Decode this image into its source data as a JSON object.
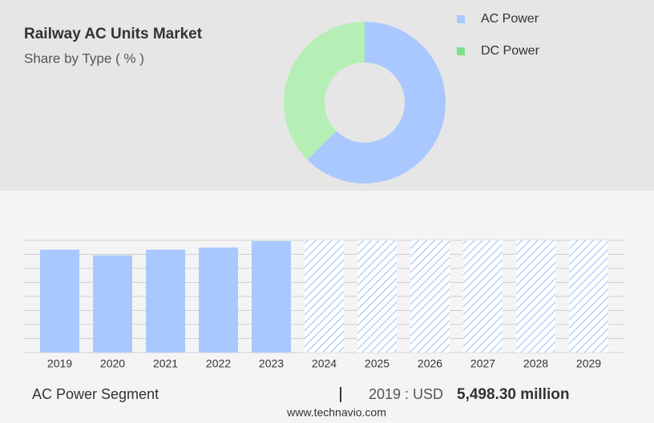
{
  "chart_data": [
    {
      "type": "pie",
      "title": "Railway AC Units Market",
      "subtitle": "Share by Type ( % )",
      "categories": [
        "AC Power",
        "DC Power"
      ],
      "values": [
        62.5,
        37.5
      ],
      "colors": [
        "#a9c8ff",
        "#b5efb5"
      ],
      "legend_colors": [
        "#a9c8ff",
        "#7ee08a"
      ],
      "donut": true
    },
    {
      "type": "bar",
      "title": "AC Power Segment",
      "categories": [
        "2019",
        "2020",
        "2021",
        "2022",
        "2023",
        "2024",
        "2025",
        "2026",
        "2027",
        "2028",
        "2029"
      ],
      "values": [
        5498.3,
        5200,
        5500,
        5620,
        5960,
        null,
        null,
        null,
        null,
        null,
        null
      ],
      "color": "#a9c8ff",
      "ylim": [
        0,
        6000
      ],
      "yticks": [
        0,
        750,
        1500,
        2250,
        3000,
        3750,
        4500,
        5250,
        6000
      ],
      "grid": true,
      "show_ytick_labels": false,
      "highlight_label": "2019 : USD",
      "highlight_value": "5,498.30 million"
    }
  ],
  "source": "www.technavio.com"
}
